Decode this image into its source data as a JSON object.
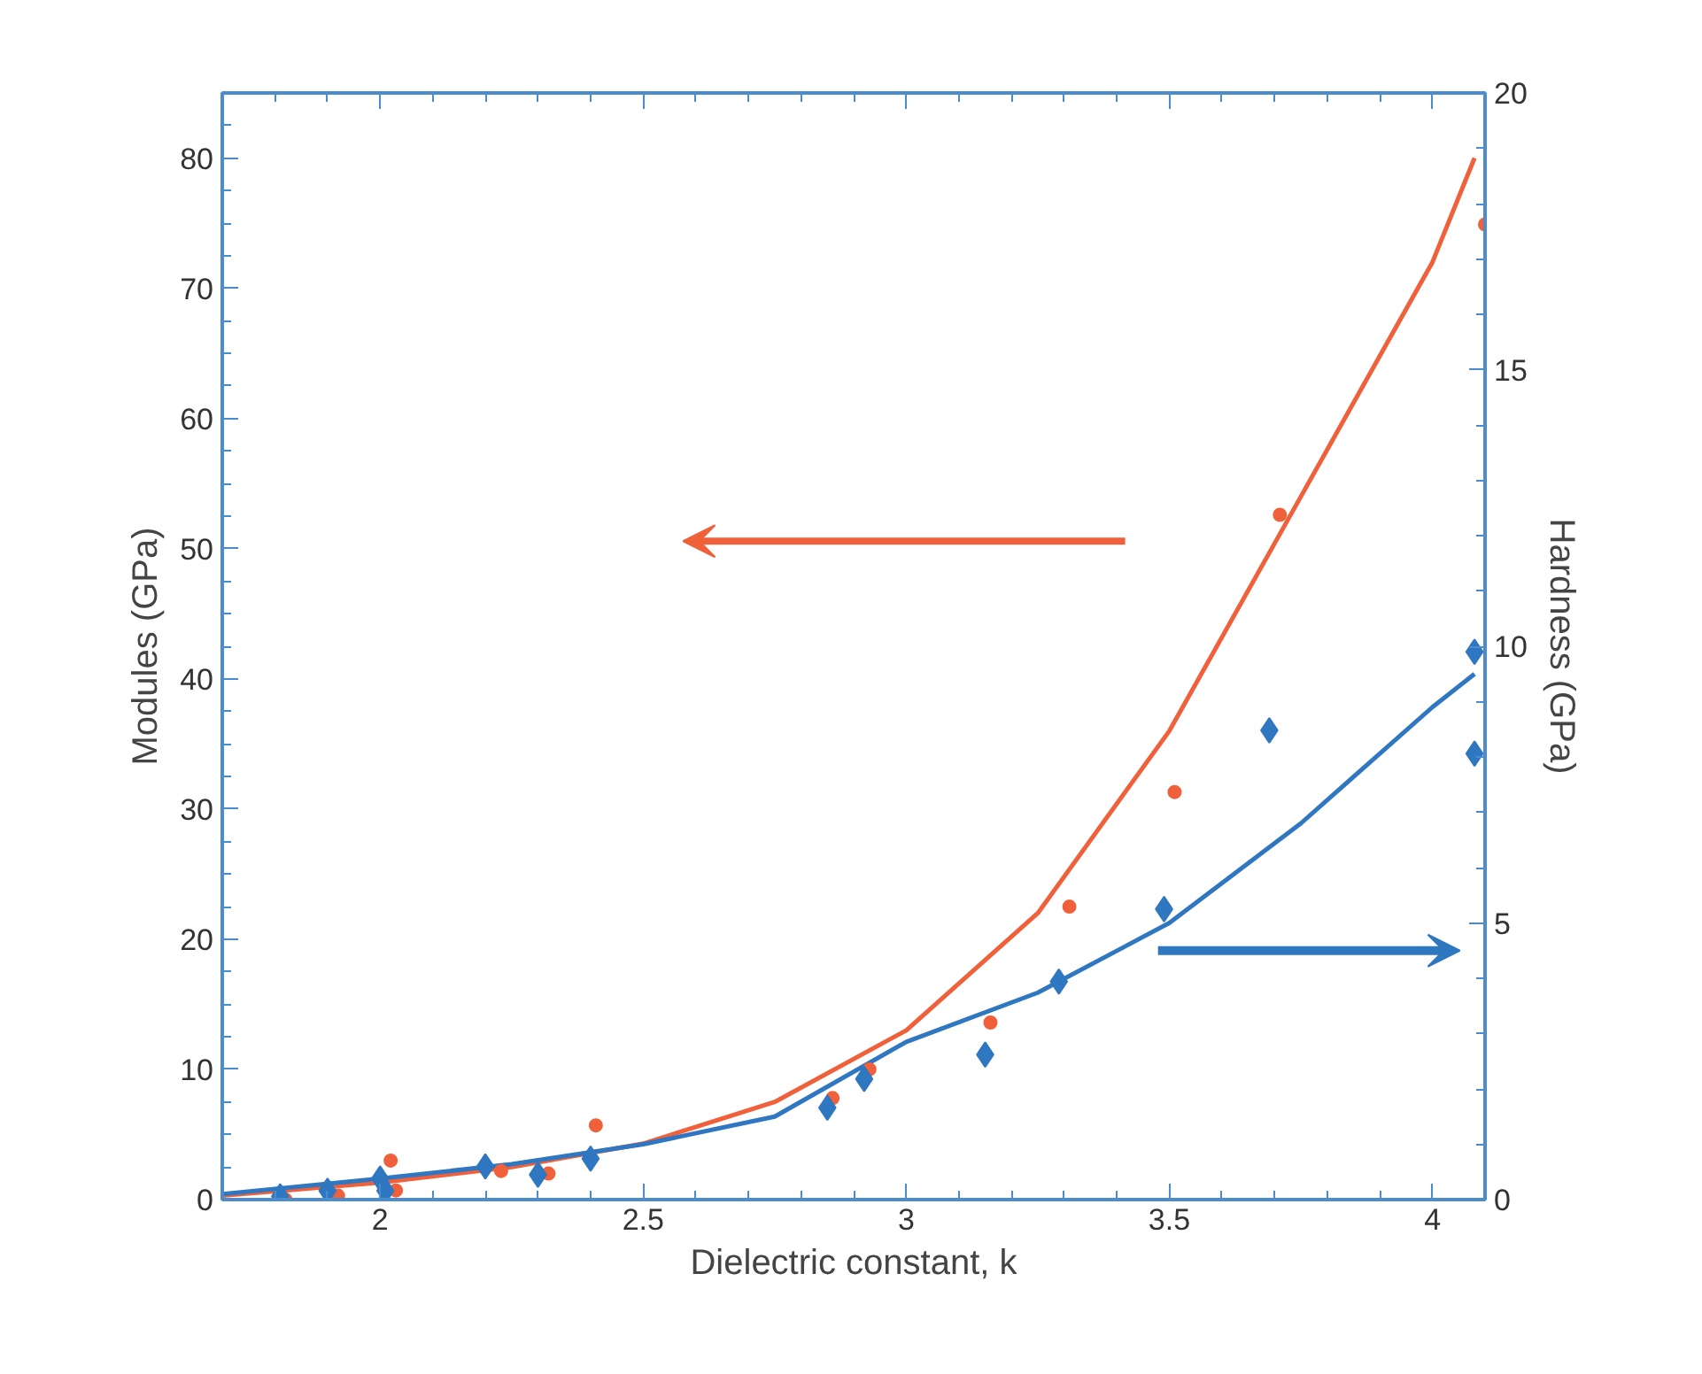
{
  "chart_data": {
    "type": "scatter",
    "xlabel": "Dielectric constant, k",
    "ylabel": "Modules (GPa)",
    "y2label": "Hardness (GPa)",
    "xlim": [
      1.7,
      4.1
    ],
    "xticks": [
      2,
      2.5,
      3,
      3.5,
      4
    ],
    "ylim": [
      0,
      85
    ],
    "yticks": [
      0,
      10,
      20,
      30,
      40,
      50,
      60,
      70,
      80
    ],
    "y2lim": [
      0,
      20
    ],
    "y2ticks": [
      0,
      5,
      10,
      15,
      20
    ],
    "grid": false,
    "series": [
      {
        "color": "#f0603a",
        "marker": "circle",
        "x": [
          1.82,
          1.92,
          2.02,
          2.03,
          2.23,
          2.32,
          2.41,
          2.86,
          2.93,
          3.16,
          3.31,
          3.51,
          3.71,
          4.1
        ],
        "values": [
          0,
          0.3,
          3,
          0.7,
          2.2,
          2,
          5.7,
          7.8,
          10,
          13.6,
          22.5,
          31.3,
          52.6,
          74.9
        ]
      },
      {
        "color": "#2f77c0",
        "marker": "diamond",
        "axis": "y2",
        "x": [
          1.81,
          1.9,
          2.0,
          2.01,
          2.2,
          2.3,
          2.4,
          2.85,
          2.92,
          3.15,
          3.29,
          3.49,
          3.69,
          4.08,
          4.08
        ],
        "values": [
          0.06,
          0.16,
          0.38,
          0.16,
          0.6,
          0.45,
          0.74,
          1.66,
          2.18,
          2.62,
          3.94,
          5.25,
          8.48,
          9.9,
          8.06
        ]
      },
      {
        "type": "line",
        "color": "#f0603a",
        "x": [
          1.7,
          2.0,
          2.25,
          2.5,
          2.75,
          3.0,
          3.25,
          3.5,
          3.75,
          4.0,
          4.08
        ],
        "values": [
          0.3,
          1.3,
          2.5,
          4.3,
          7.5,
          13,
          22,
          36,
          54,
          72,
          80
        ]
      },
      {
        "type": "line",
        "color": "#2f77c0",
        "axis": "y2",
        "x": [
          1.7,
          2.0,
          2.25,
          2.5,
          2.75,
          3.0,
          3.25,
          3.5,
          3.75,
          4.0,
          4.08
        ],
        "values": [
          0.1,
          0.38,
          0.64,
          1.0,
          1.5,
          2.85,
          3.74,
          5.0,
          6.8,
          8.9,
          9.5
        ]
      }
    ]
  }
}
